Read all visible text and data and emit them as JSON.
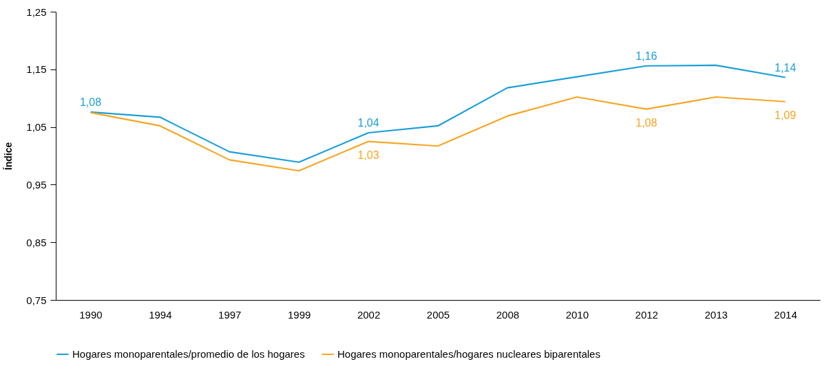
{
  "chart_data": {
    "type": "line",
    "ylabel": "Índice",
    "categories": [
      "1990",
      "1994",
      "1997",
      "1999",
      "2002",
      "2005",
      "2008",
      "2010",
      "2012",
      "2013",
      "2014"
    ],
    "series": [
      {
        "name": "Hogares monoparentales/promedio de los hogares",
        "color": "#1a9fd9",
        "values": [
          1.076,
          1.067,
          1.007,
          0.989,
          1.04,
          1.052,
          1.118,
          1.137,
          1.156,
          1.157,
          1.136
        ],
        "value_labels": [
          "1,08",
          null,
          null,
          null,
          "1,04",
          null,
          null,
          null,
          "1,16",
          null,
          "1,14"
        ]
      },
      {
        "name": "Hogares monoparentales/hogares nucleares biparentales",
        "color": "#f5a623",
        "values": [
          1.075,
          1.052,
          0.993,
          0.974,
          1.025,
          1.017,
          1.069,
          1.102,
          1.081,
          1.102,
          1.094
        ],
        "value_labels": [
          null,
          null,
          null,
          null,
          "1,03",
          null,
          null,
          null,
          "1,08",
          null,
          "1,09"
        ]
      }
    ],
    "ylim": [
      0.75,
      1.25
    ],
    "yticks": [
      {
        "value": 0.75,
        "label": "0,75"
      },
      {
        "value": 0.85,
        "label": "0,85"
      },
      {
        "value": 0.95,
        "label": "0,95"
      },
      {
        "value": 1.05,
        "label": "1,05"
      },
      {
        "value": 1.15,
        "label": "1,15"
      },
      {
        "value": 1.25,
        "label": "1,25"
      }
    ],
    "grid": false,
    "legend": "bottom",
    "marker": "none",
    "line_style": "solid"
  }
}
